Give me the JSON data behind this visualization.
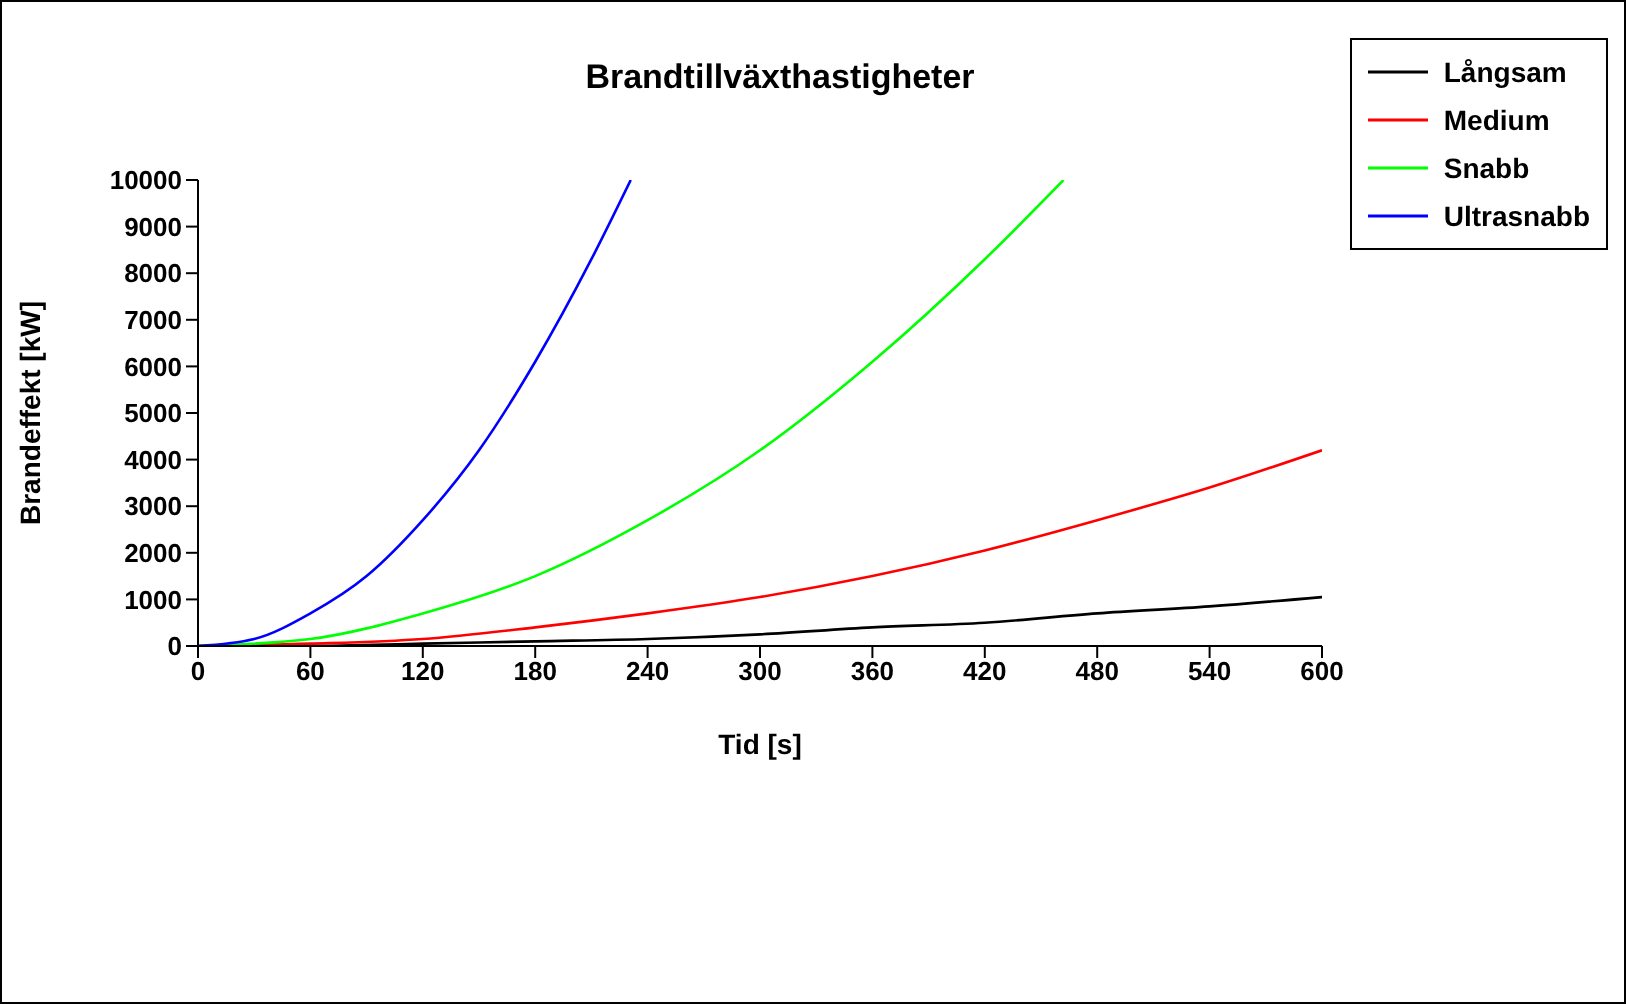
{
  "chart_data": {
    "type": "line",
    "title": "Brandtillväxthastigheter",
    "xlabel": "Tid [s]",
    "ylabel": "Brandeffekt [kW]",
    "xlim": [
      0,
      600
    ],
    "xticks": [
      0,
      60,
      120,
      180,
      240,
      300,
      360,
      420,
      480,
      540,
      600
    ],
    "ylim": [
      0,
      10000
    ],
    "yticks": [
      0,
      1000,
      2000,
      3000,
      4000,
      5000,
      6000,
      7000,
      8000,
      9000,
      10000
    ],
    "legend": "top right",
    "marker": "none",
    "line_style": "solid",
    "series": [
      {
        "name": "Långsam",
        "color": "#000000",
        "x": [
          0,
          60,
          120,
          180,
          240,
          300,
          360,
          420,
          480,
          540,
          600
        ],
        "values": [
          0,
          0,
          50,
          100,
          150,
          250,
          400,
          500,
          700,
          850,
          1050
        ]
      },
      {
        "name": "Medium",
        "color": "#ff0000",
        "x": [
          0,
          60,
          120,
          180,
          240,
          300,
          360,
          420,
          480,
          540,
          600
        ],
        "values": [
          0,
          50,
          150,
          400,
          700,
          1050,
          1500,
          2050,
          2700,
          3400,
          4200
        ]
      },
      {
        "name": "Snabb",
        "color": "#00ff00",
        "x": [
          0,
          60,
          120,
          180,
          240,
          300,
          360,
          420,
          462
        ],
        "values": [
          0,
          150,
          700,
          1500,
          2700,
          4200,
          6100,
          8300,
          10000
        ]
      },
      {
        "name": "Ultrasnabb",
        "color": "#0000ff",
        "x": [
          0,
          30,
          60,
          90,
          120,
          150,
          180,
          210,
          231
        ],
        "values": [
          0,
          150,
          700,
          1500,
          2700,
          4200,
          6100,
          8300,
          10000
        ]
      }
    ]
  }
}
